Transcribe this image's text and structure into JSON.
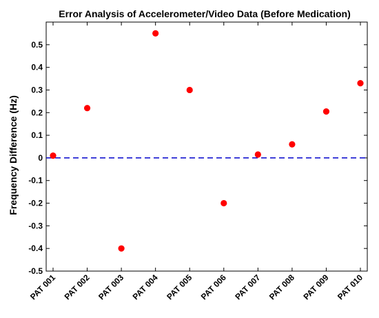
{
  "chart_data": {
    "type": "scatter",
    "title": "Error Analysis of Accelerometer/Video Data (Before Medication)",
    "xlabel": "",
    "ylabel": "Frequency Difference (Hz)",
    "categories": [
      "PAT 001",
      "PAT 002",
      "PAT 003",
      "PAT 004",
      "PAT 005",
      "PAT 006",
      "PAT 007",
      "PAT 008",
      "PAT 009",
      "PAT 010"
    ],
    "series": [
      {
        "values": [
          0.01,
          0.22,
          -0.4,
          0.55,
          0.3,
          -0.2,
          0.015,
          0.06,
          0.205,
          0.33
        ],
        "color": "#ff0000"
      }
    ],
    "reference_line": {
      "y": 0,
      "style": "dashed",
      "color": "#0000cc"
    },
    "ylim": [
      -0.5,
      0.6
    ],
    "yticks": [
      -0.5,
      -0.4,
      -0.3,
      -0.2,
      -0.1,
      0,
      0.1,
      0.2,
      0.3,
      0.4,
      0.5
    ],
    "ytick_labels": [
      "-0.5",
      "-0.4",
      "-0.3",
      "-0.2",
      "-0.1",
      "0",
      "0.1",
      "0.2",
      "0.3",
      "0.4",
      "0.5"
    ],
    "grid": false,
    "legend": "none"
  }
}
